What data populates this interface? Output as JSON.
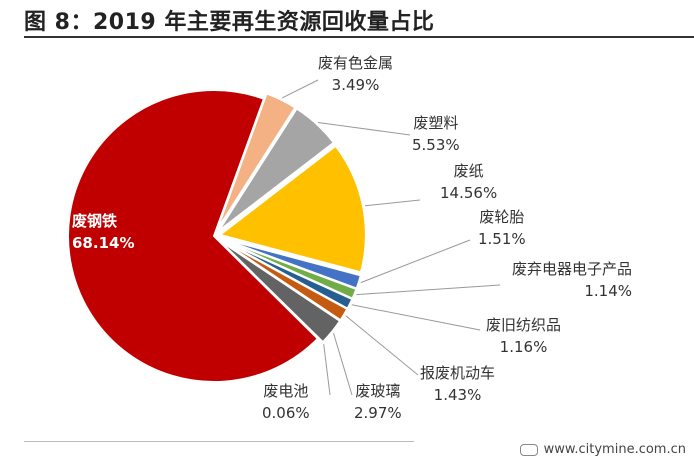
{
  "title": "图 8：2019 年主要再生资源回收量占比",
  "watermark": "www.citymine.com.cn",
  "chart_data": {
    "type": "pie",
    "title": "图 8：2019 年主要再生资源回收量占比",
    "slices": [
      {
        "name": "废有色金属",
        "value": 3.49,
        "label": "3.49%",
        "color": "#F4B183"
      },
      {
        "name": "废塑料",
        "value": 5.53,
        "label": "5.53%",
        "color": "#A5A5A5"
      },
      {
        "name": "废纸",
        "value": 14.56,
        "label": "14.56%",
        "color": "#FFC000"
      },
      {
        "name": "废轮胎",
        "value": 1.51,
        "label": "1.51%",
        "color": "#4472C4"
      },
      {
        "name": "废弃电器电子产品",
        "value": 1.14,
        "label": "1.14%",
        "color": "#70AD47"
      },
      {
        "name": "废旧纺织品",
        "value": 1.16,
        "label": "1.16%",
        "color": "#255E91"
      },
      {
        "name": "报废机动车",
        "value": 1.43,
        "label": "1.43%",
        "color": "#C55A11"
      },
      {
        "name": "废玻璃",
        "value": 2.97,
        "label": "2.97%",
        "color": "#636363"
      },
      {
        "name": "废电池",
        "value": 0.06,
        "label": "0.06%",
        "color": "#997300"
      },
      {
        "name": "废钢铁",
        "value": 68.14,
        "label": "68.14%",
        "color": "#C00000"
      }
    ]
  }
}
